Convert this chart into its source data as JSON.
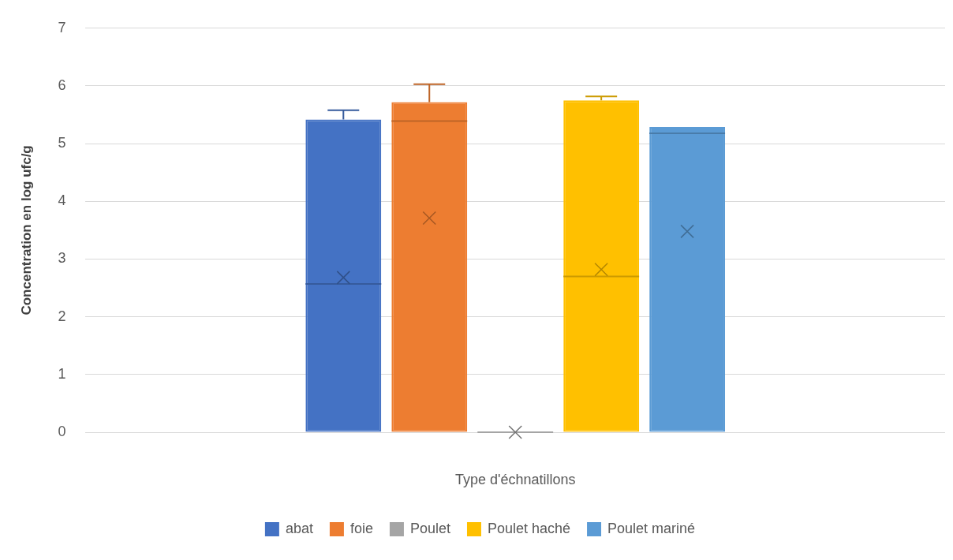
{
  "chart_data": {
    "type": "box",
    "xlabel": "Type d'échnatillons",
    "ylabel": "Concentration en log ufc/g",
    "categories": [
      null
    ],
    "series": [
      {
        "name": "abat",
        "color": "#4472c4",
        "boxes": [
          {
            "low": 0,
            "q1": 0,
            "median": 2.57,
            "q3": 5.42,
            "high": 5.58,
            "mean": 2.68
          }
        ]
      },
      {
        "name": "foie",
        "color": "#ed7d31",
        "boxes": [
          {
            "low": 0,
            "q1": 0,
            "median": 5.39,
            "q3": 5.72,
            "high": 6.03,
            "mean": 3.71
          }
        ]
      },
      {
        "name": "Poulet",
        "color": "#a5a5a5",
        "boxes": [
          {
            "low": 0,
            "q1": 0,
            "median": 0,
            "q3": 0,
            "high": 0,
            "mean": 0
          }
        ]
      },
      {
        "name": "Poulet haché",
        "color": "#ffc000",
        "boxes": [
          {
            "low": 0,
            "q1": 0,
            "median": 2.7,
            "q3": 5.75,
            "high": 5.82,
            "mean": 2.82
          }
        ]
      },
      {
        "name": "Poulet mariné",
        "color": "#5b9bd5",
        "boxes": [
          {
            "low": 0,
            "q1": 0,
            "median": 5.18,
            "q3": 5.29,
            "high": 5.29,
            "mean": 3.48
          }
        ]
      }
    ],
    "ylim": [
      0,
      7
    ],
    "yticks": [
      0,
      1,
      2,
      3,
      4,
      5,
      6,
      7
    ],
    "grid": "y",
    "legend": "bottom"
  }
}
